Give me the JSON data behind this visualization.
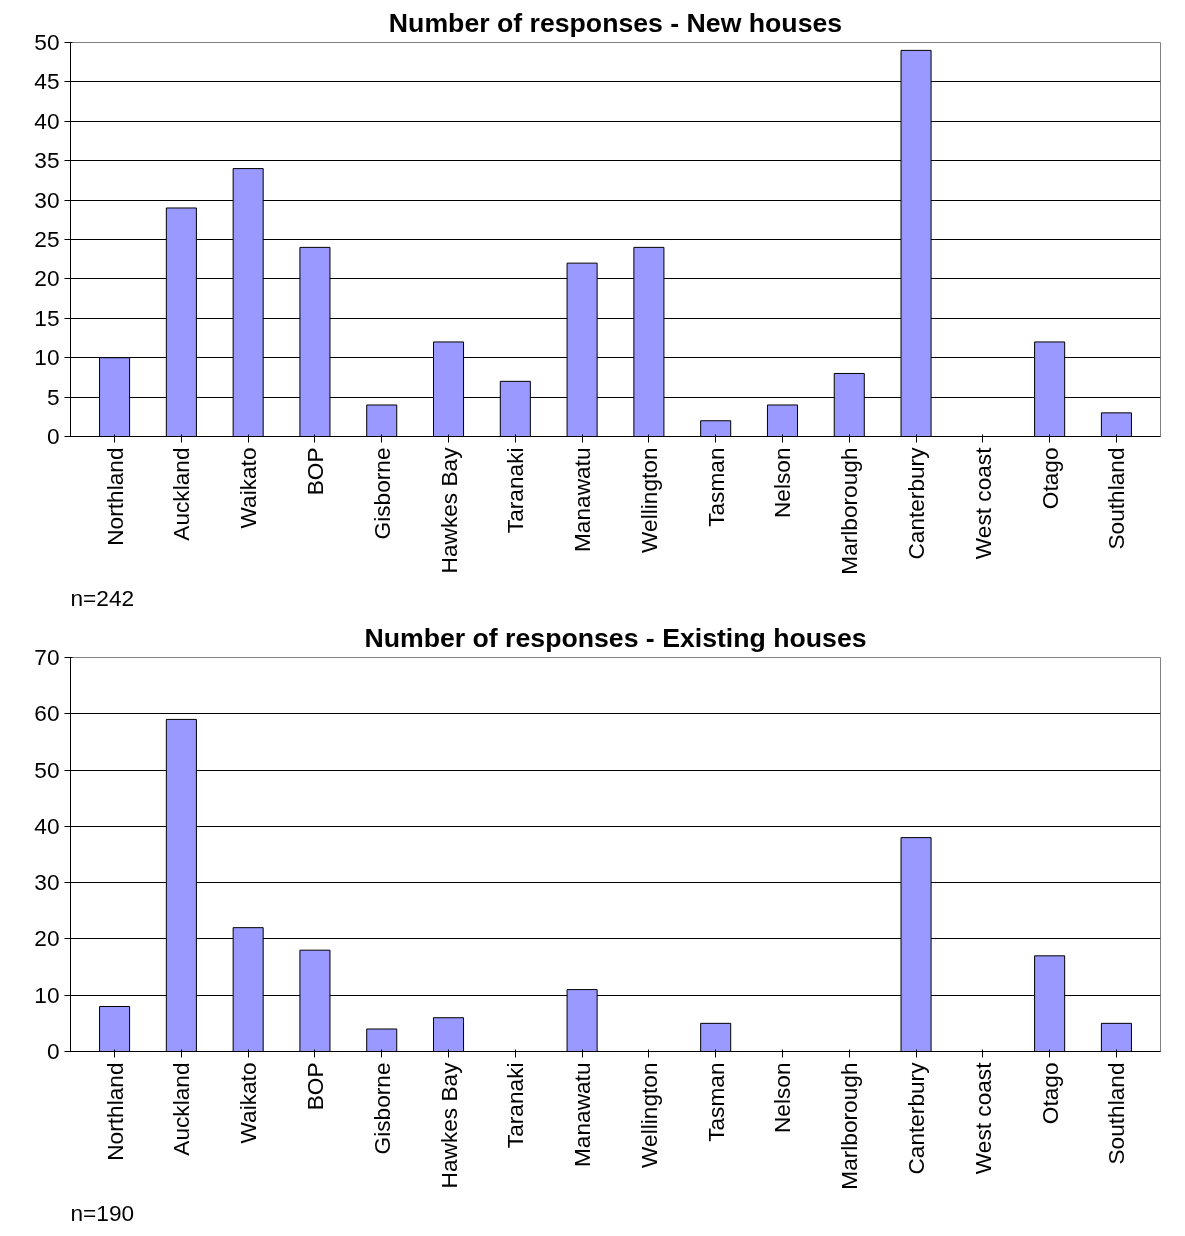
{
  "chart_data": [
    {
      "type": "bar",
      "title": "Number of responses - New houses",
      "categories": [
        "Northland",
        "Auckland",
        "Waikato",
        "BOP",
        "Gisborne",
        "Hawkes Bay",
        "Taranaki",
        "Manawatu",
        "Wellington",
        "Tasman",
        "Nelson",
        "Marlborough",
        "Canterbury",
        "West coast",
        "Otago",
        "Southland"
      ],
      "values": [
        10,
        29,
        34,
        24,
        4,
        12,
        7,
        22,
        24,
        2,
        4,
        8,
        49,
        0,
        12,
        3
      ],
      "color": "#9999ff",
      "ylim": [
        0,
        50
      ],
      "yticks": [
        0,
        5,
        10,
        15,
        20,
        25,
        30,
        35,
        40,
        45,
        50
      ],
      "grid": "y",
      "annotations": [
        "n=242"
      ]
    },
    {
      "type": "bar",
      "title": "Number of responses - Existing houses",
      "categories": [
        "Northland",
        "Auckland",
        "Waikato",
        "BOP",
        "Gisborne",
        "Hawkes Bay",
        "Taranaki",
        "Manawatu",
        "Wellington",
        "Tasman",
        "Nelson",
        "Marlborough",
        "Canterbury",
        "West coast",
        "Otago",
        "Southland"
      ],
      "values": [
        8,
        59,
        22,
        18,
        4,
        6,
        0,
        11,
        0,
        5,
        0,
        0,
        38,
        0,
        17,
        5
      ],
      "color": "#9999ff",
      "ylim": [
        0,
        70
      ],
      "yticks": [
        0,
        10,
        20,
        30,
        40,
        50,
        60,
        70
      ],
      "grid": "y",
      "annotations": [
        "n=190"
      ]
    }
  ]
}
